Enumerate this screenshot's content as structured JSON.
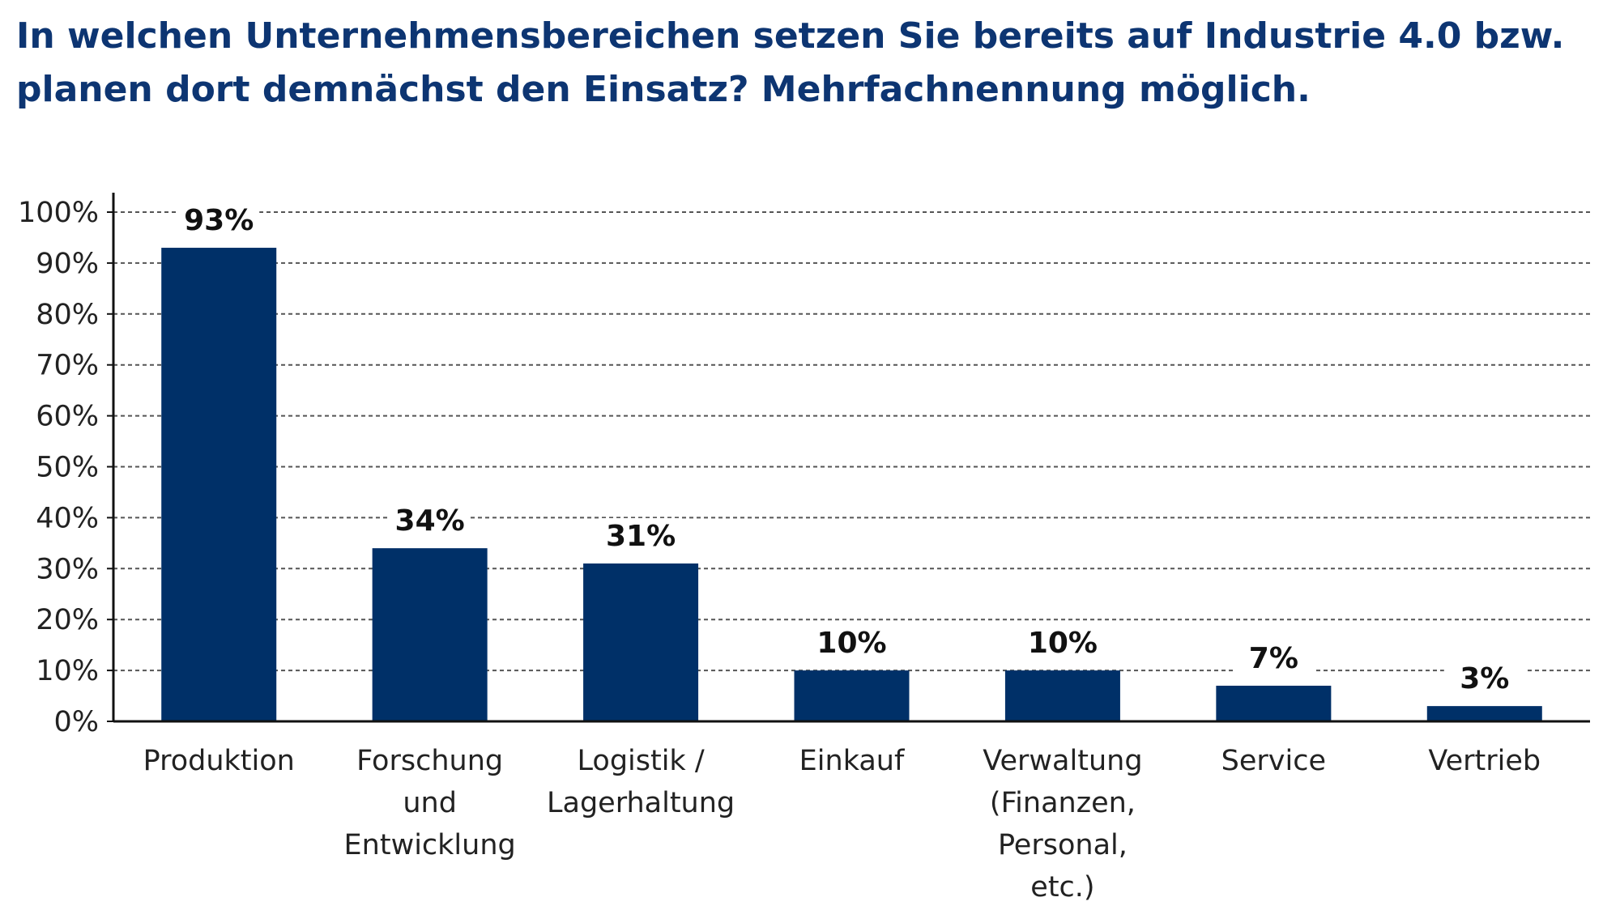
{
  "chart_data": {
    "type": "bar",
    "title": "In welchen Unternehmensbereichen setzen Sie bereits auf Industrie 4.0 bzw. planen dort demnächst den Einsatz? Mehrfachnennung möglich.",
    "categories": [
      [
        "Produktion"
      ],
      [
        "Forschung",
        "und",
        "Entwicklung"
      ],
      [
        "Logistik /",
        "Lagerhaltung"
      ],
      [
        "Einkauf"
      ],
      [
        "Verwaltung",
        "(Finanzen,",
        "Personal,",
        "etc.)"
      ],
      [
        "Service"
      ],
      [
        "Vertrieb"
      ]
    ],
    "values": [
      93,
      34,
      31,
      10,
      10,
      7,
      3
    ],
    "value_labels": [
      "93%",
      "34%",
      "31%",
      "10%",
      "10%",
      "7%",
      "3%"
    ],
    "yticks": [
      0,
      10,
      20,
      30,
      40,
      50,
      60,
      70,
      80,
      90,
      100
    ],
    "ytick_labels": [
      "0%",
      "10%",
      "20%",
      "30%",
      "40%",
      "50%",
      "60%",
      "70%",
      "80%",
      "90%",
      "100%"
    ],
    "ylim": [
      0,
      100
    ],
    "xlabel": "",
    "ylabel": "",
    "grid": "dashed horizontal",
    "colors": {
      "bar": "#003068",
      "title": "#0d3572",
      "grid": "#555555",
      "axis": "#111111"
    }
  }
}
